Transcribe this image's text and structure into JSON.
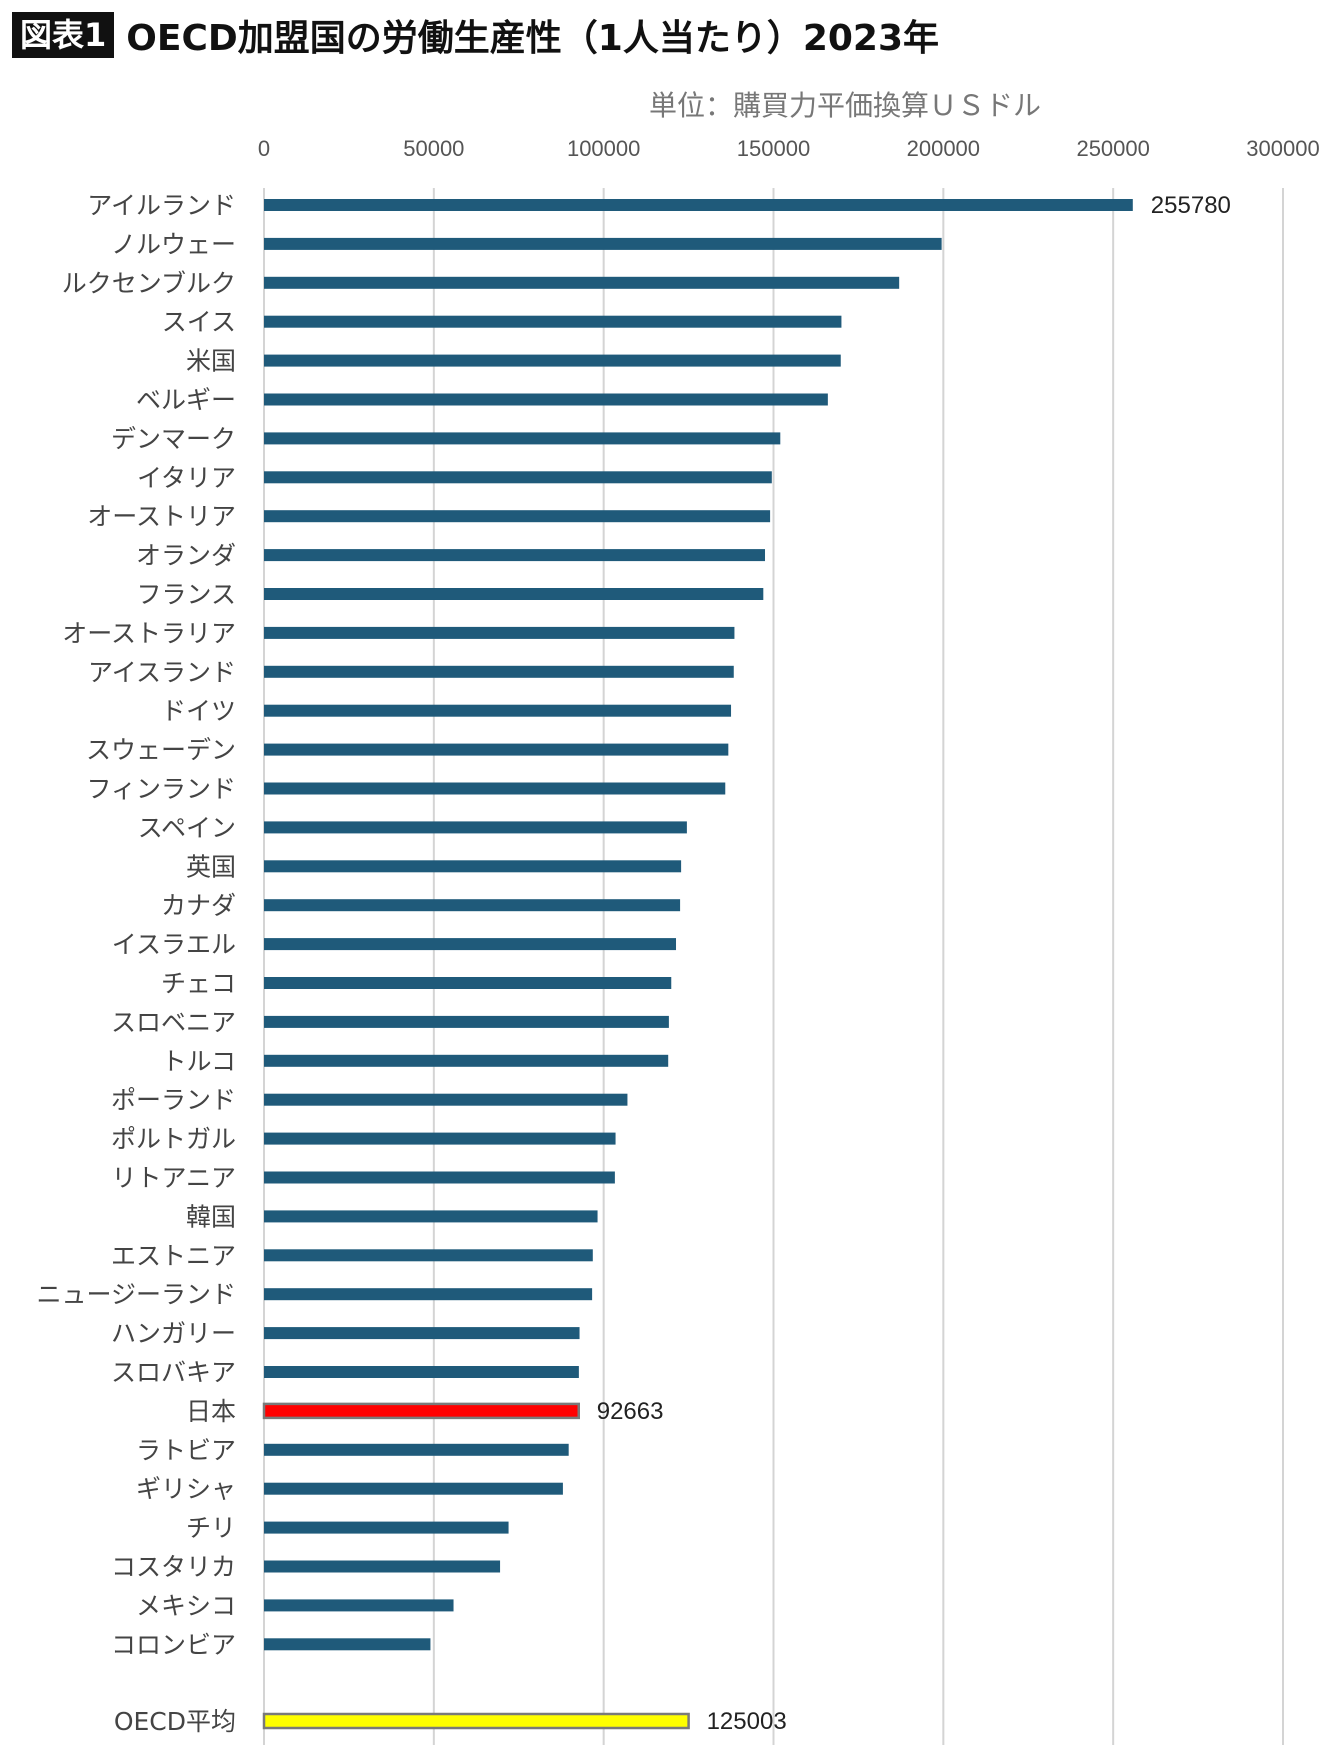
{
  "header": {
    "badge": "図表1",
    "title": "OECD加盟国の労働生産性（1人当たり）2023年"
  },
  "chart_data": {
    "type": "bar",
    "orientation": "horizontal",
    "unit_label": "単位：購買力平価換算ＵＳドル",
    "xlim": [
      0,
      300000
    ],
    "x_ticks": [
      "0",
      "50000",
      "100000",
      "150000",
      "200000",
      "250000",
      "300000"
    ],
    "grid": "vertical",
    "bar_color": "#1f5a7a",
    "categories": [
      "アイルランド",
      "ノルウェー",
      "ルクセンブルク",
      "スイス",
      "米国",
      "ベルギー",
      "デンマーク",
      "イタリア",
      "オーストリア",
      "オランダ",
      "フランス",
      "オーストラリア",
      "アイスランド",
      "ドイツ",
      "スウェーデン",
      "フィンランド",
      "スペイン",
      "英国",
      "カナダ",
      "イスラエル",
      "チェコ",
      "スロベニア",
      "トルコ",
      "ポーランド",
      "ポルトガル",
      "リトアニア",
      "韓国",
      "エストニア",
      "ニュージーランド",
      "ハンガリー",
      "スロバキア",
      "日本",
      "ラトビア",
      "ギリシャ",
      "チリ",
      "コスタリカ",
      "メキシコ",
      "コロンビア",
      "OECD平均"
    ],
    "values": [
      255780,
      199500,
      187000,
      170000,
      169800,
      166000,
      152000,
      149500,
      149000,
      147500,
      147000,
      138500,
      138300,
      137500,
      136700,
      135800,
      124500,
      122800,
      122500,
      121300,
      119900,
      119200,
      119000,
      107000,
      103500,
      103300,
      98200,
      96800,
      96600,
      92900,
      92700,
      92663,
      89700,
      88000,
      72000,
      69500,
      55800,
      49000,
      125003
    ],
    "data_labels": [
      {
        "category": "アイルランド",
        "text": "255780"
      },
      {
        "category": "日本",
        "text": "92663"
      },
      {
        "category": "OECD平均",
        "text": "125003"
      }
    ],
    "highlights": [
      {
        "category": "日本",
        "color": "#ff0000",
        "outline": "#7a7a7a"
      },
      {
        "category": "OECD平均",
        "color": "#ffff00",
        "outline": "#7a7a7a"
      }
    ]
  }
}
